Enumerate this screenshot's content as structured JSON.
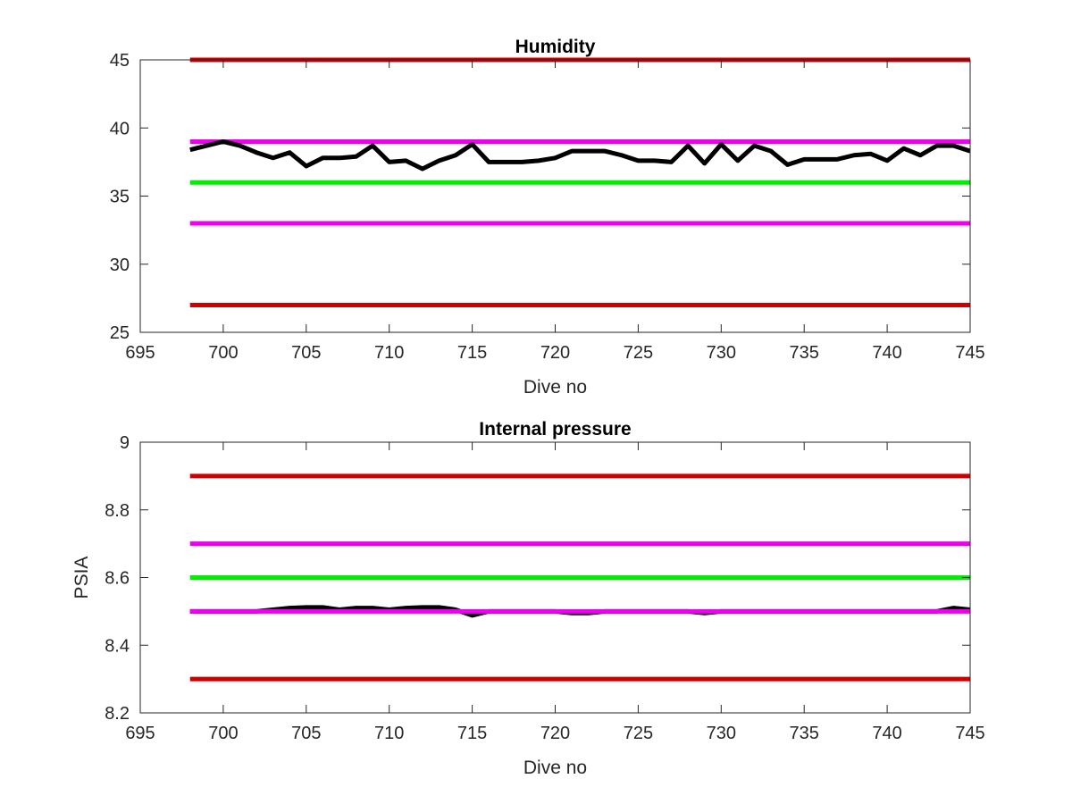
{
  "chart_data": [
    {
      "type": "line",
      "title": "Humidity",
      "xlabel": "Dive no",
      "ylabel": "",
      "xlim": [
        695,
        745
      ],
      "ylim": [
        25,
        45
      ],
      "xticks": [
        695,
        700,
        705,
        710,
        715,
        720,
        725,
        730,
        735,
        740,
        745
      ],
      "yticks": [
        25,
        30,
        35,
        40,
        45
      ],
      "xtick_labels": [
        "695",
        "700",
        "705",
        "710",
        "715",
        "720",
        "725",
        "730",
        "735",
        "740",
        "745"
      ],
      "ytick_labels": [
        "25",
        "30",
        "35",
        "40",
        "45"
      ],
      "grid": false,
      "reference_lines": [
        {
          "y": 45,
          "x_range": [
            698,
            745
          ],
          "color": "#cc0000"
        },
        {
          "y": 39,
          "x_range": [
            698,
            745
          ],
          "color": "#ee00ee"
        },
        {
          "y": 36,
          "x_range": [
            698,
            745
          ],
          "color": "#00ee00"
        },
        {
          "y": 33,
          "x_range": [
            698,
            745
          ],
          "color": "#ee00ee"
        },
        {
          "y": 27,
          "x_range": [
            698,
            745
          ],
          "color": "#cc0000"
        }
      ],
      "series": [
        {
          "color": "#000000",
          "x": [
            698,
            699,
            700,
            701,
            702,
            703,
            704,
            705,
            706,
            707,
            708,
            709,
            710,
            711,
            712,
            713,
            714,
            715,
            716,
            717,
            718,
            719,
            720,
            721,
            722,
            723,
            724,
            725,
            726,
            727,
            728,
            729,
            730,
            731,
            732,
            733,
            734,
            735,
            736,
            737,
            738,
            739,
            740,
            741,
            742,
            743,
            744,
            745
          ],
          "y": [
            38.4,
            38.7,
            39.0,
            38.7,
            38.2,
            37.8,
            38.2,
            37.2,
            37.8,
            37.8,
            37.9,
            38.7,
            37.5,
            37.6,
            37.0,
            37.6,
            38.0,
            38.8,
            37.5,
            37.5,
            37.5,
            37.6,
            37.8,
            38.3,
            38.3,
            38.3,
            38.0,
            37.6,
            37.6,
            37.5,
            38.7,
            37.4,
            38.8,
            37.6,
            38.7,
            38.3,
            37.3,
            37.7,
            37.7,
            37.7,
            38.0,
            38.1,
            37.6,
            38.5,
            38.0,
            38.7,
            38.7,
            38.3
          ]
        }
      ]
    },
    {
      "type": "line",
      "title": "Internal pressure",
      "xlabel": "Dive no",
      "ylabel": "PSIA",
      "xlim": [
        695,
        745
      ],
      "ylim": [
        8.2,
        9
      ],
      "xticks": [
        695,
        700,
        705,
        710,
        715,
        720,
        725,
        730,
        735,
        740,
        745
      ],
      "yticks": [
        8.2,
        8.4,
        8.6,
        8.8,
        9
      ],
      "xtick_labels": [
        "695",
        "700",
        "705",
        "710",
        "715",
        "720",
        "725",
        "730",
        "735",
        "740",
        "745"
      ],
      "ytick_labels": [
        "8.2",
        "8.4",
        "8.6",
        "8.8",
        "9"
      ],
      "grid": false,
      "reference_lines": [
        {
          "y": 8.9,
          "x_range": [
            698,
            745
          ],
          "color": "#cc0000"
        },
        {
          "y": 8.7,
          "x_range": [
            698,
            745
          ],
          "color": "#ee00ee"
        },
        {
          "y": 8.6,
          "x_range": [
            698,
            745
          ],
          "color": "#00ee00"
        },
        {
          "y": 8.3,
          "x_range": [
            698,
            745
          ],
          "color": "#cc0000"
        }
      ],
      "series": [
        {
          "color": "#000000",
          "x": [
            698,
            699,
            700,
            701,
            702,
            703,
            704,
            705,
            706,
            707,
            708,
            709,
            710,
            711,
            712,
            713,
            714,
            715,
            716,
            717,
            718,
            719,
            720,
            721,
            722,
            723,
            724,
            725,
            726,
            727,
            728,
            729,
            730,
            731,
            732,
            733,
            734,
            735,
            736,
            737,
            738,
            739,
            740,
            741,
            742,
            743,
            744,
            745
          ],
          "y": [
            8.5,
            8.5,
            8.5,
            8.5,
            8.5,
            8.505,
            8.51,
            8.512,
            8.512,
            8.505,
            8.51,
            8.51,
            8.505,
            8.51,
            8.512,
            8.512,
            8.505,
            8.488,
            8.5,
            8.5,
            8.5,
            8.5,
            8.5,
            8.495,
            8.495,
            8.5,
            8.5,
            8.5,
            8.5,
            8.5,
            8.5,
            8.495,
            8.5,
            8.5,
            8.5,
            8.5,
            8.5,
            8.5,
            8.5,
            8.5,
            8.5,
            8.5,
            8.5,
            8.5,
            8.5,
            8.5,
            8.51,
            8.505
          ]
        },
        {
          "color": "#ee00ee",
          "x": [
            698,
            745
          ],
          "y": [
            8.5,
            8.5
          ]
        }
      ]
    }
  ]
}
